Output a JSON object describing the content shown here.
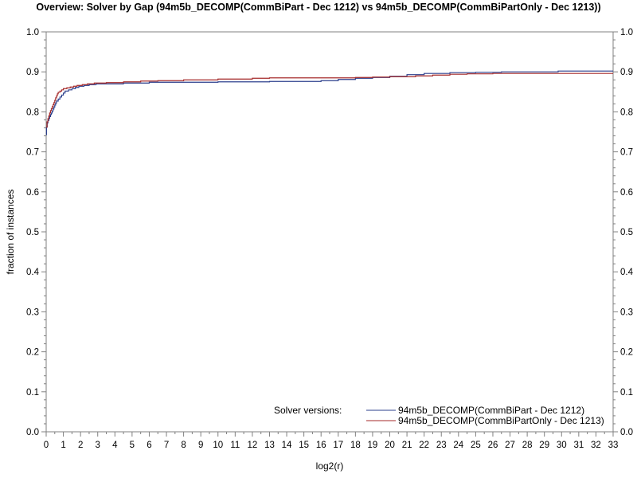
{
  "chart_data": {
    "type": "line",
    "title": "Overview: Solver by Gap (94m5b_DECOMP(CommBiPart - Dec 1212) vs 94m5b_DECOMP(CommBiPartOnly - Dec 1213))",
    "xlabel": "log2(r)",
    "ylabel": "fraction of instances",
    "xlim": [
      0,
      33
    ],
    "ylim": [
      0,
      1
    ],
    "x_ticks": [
      0,
      1,
      2,
      3,
      4,
      5,
      6,
      7,
      8,
      9,
      10,
      11,
      12,
      13,
      14,
      15,
      16,
      17,
      18,
      19,
      20,
      21,
      22,
      23,
      24,
      25,
      26,
      27,
      28,
      29,
      30,
      31,
      32,
      33
    ],
    "y_ticks": [
      0.0,
      0.1,
      0.2,
      0.3,
      0.4,
      0.5,
      0.6,
      0.7,
      0.8,
      0.9,
      1.0
    ],
    "y_tick_labels": [
      "0.0",
      "0.1",
      "0.2",
      "0.3",
      "0.4",
      "0.5",
      "0.6",
      "0.7",
      "0.8",
      "0.9",
      "1.0"
    ],
    "legend_title": "Solver versions:",
    "legend_position": "bottom-right",
    "step": true,
    "series": [
      {
        "name": "94m5b_DECOMP(CommBiPart - Dec 1212)",
        "color": "#2b3f8c",
        "points": [
          [
            0,
            0.743
          ],
          [
            0.02,
            0.762
          ],
          [
            0.06,
            0.772
          ],
          [
            0.1,
            0.778
          ],
          [
            0.15,
            0.783
          ],
          [
            0.2,
            0.788
          ],
          [
            0.25,
            0.793
          ],
          [
            0.3,
            0.797
          ],
          [
            0.35,
            0.802
          ],
          [
            0.4,
            0.807
          ],
          [
            0.45,
            0.812
          ],
          [
            0.5,
            0.817
          ],
          [
            0.55,
            0.822
          ],
          [
            0.6,
            0.827
          ],
          [
            0.7,
            0.832
          ],
          [
            0.8,
            0.837
          ],
          [
            0.9,
            0.842
          ],
          [
            1.0,
            0.847
          ],
          [
            1.1,
            0.852
          ],
          [
            1.3,
            0.855
          ],
          [
            1.5,
            0.858
          ],
          [
            1.7,
            0.861
          ],
          [
            1.9,
            0.864
          ],
          [
            2.2,
            0.866
          ],
          [
            2.5,
            0.868
          ],
          [
            2.9,
            0.87
          ],
          [
            4.5,
            0.872
          ],
          [
            6,
            0.874
          ],
          [
            10,
            0.875
          ],
          [
            13,
            0.876
          ],
          [
            16,
            0.878
          ],
          [
            17,
            0.881
          ],
          [
            18,
            0.884
          ],
          [
            19,
            0.886
          ],
          [
            20,
            0.889
          ],
          [
            21.0,
            0.893
          ],
          [
            22.0,
            0.896
          ],
          [
            23.5,
            0.898
          ],
          [
            25,
            0.899
          ],
          [
            26.5,
            0.9
          ],
          [
            29.8,
            0.902
          ],
          [
            33,
            0.902
          ]
        ]
      },
      {
        "name": "94m5b_DECOMP(CommBiPartOnly - Dec 1213)",
        "color": "#a52a2a",
        "points": [
          [
            0,
            0.762
          ],
          [
            0.05,
            0.775
          ],
          [
            0.1,
            0.783
          ],
          [
            0.15,
            0.79
          ],
          [
            0.2,
            0.797
          ],
          [
            0.25,
            0.803
          ],
          [
            0.3,
            0.808
          ],
          [
            0.35,
            0.813
          ],
          [
            0.4,
            0.818
          ],
          [
            0.45,
            0.823
          ],
          [
            0.5,
            0.829
          ],
          [
            0.55,
            0.835
          ],
          [
            0.6,
            0.84
          ],
          [
            0.65,
            0.845
          ],
          [
            0.7,
            0.849
          ],
          [
            0.8,
            0.852
          ],
          [
            0.9,
            0.855
          ],
          [
            1.0,
            0.858
          ],
          [
            1.2,
            0.86
          ],
          [
            1.4,
            0.862
          ],
          [
            1.6,
            0.864
          ],
          [
            1.8,
            0.866
          ],
          [
            2.1,
            0.868
          ],
          [
            2.4,
            0.87
          ],
          [
            2.8,
            0.872
          ],
          [
            3.5,
            0.873
          ],
          [
            4.5,
            0.875
          ],
          [
            5.5,
            0.877
          ],
          [
            6.5,
            0.878
          ],
          [
            8,
            0.88
          ],
          [
            10,
            0.882
          ],
          [
            12,
            0.884
          ],
          [
            13,
            0.885
          ],
          [
            18,
            0.886
          ],
          [
            19,
            0.887
          ],
          [
            20,
            0.888
          ],
          [
            21.5,
            0.89
          ],
          [
            22.5,
            0.892
          ],
          [
            23.5,
            0.894
          ],
          [
            24.5,
            0.895
          ],
          [
            26,
            0.896
          ],
          [
            33,
            0.896
          ]
        ]
      }
    ]
  }
}
